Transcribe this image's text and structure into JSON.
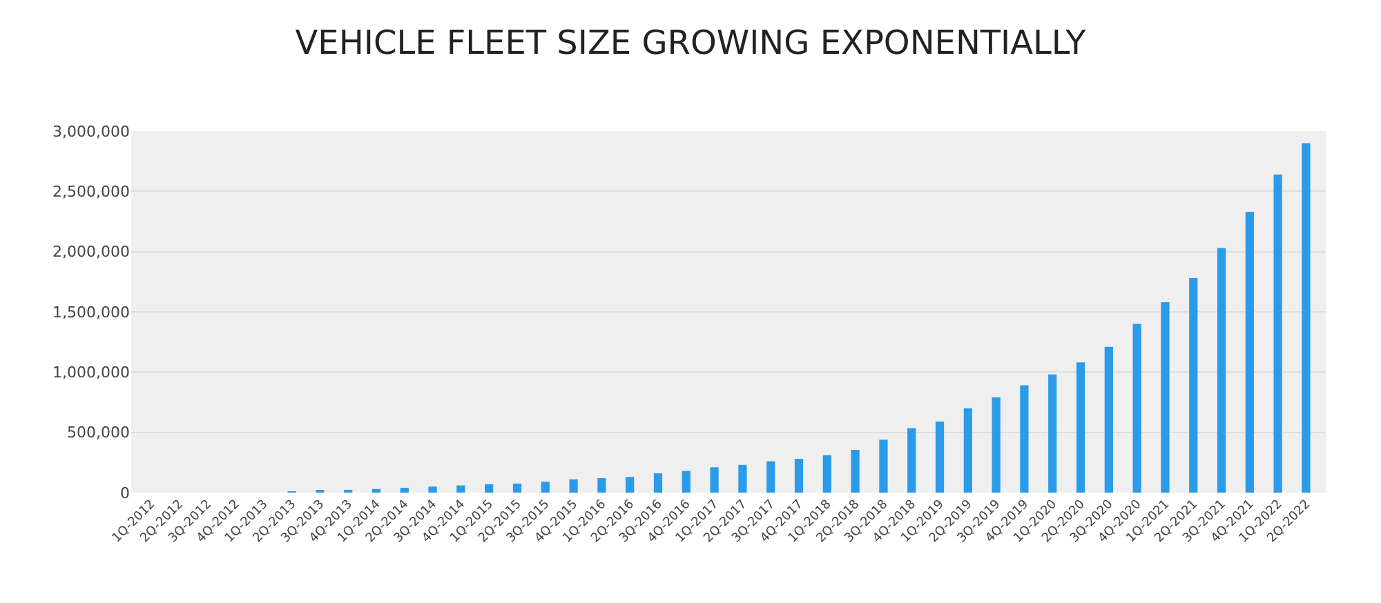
{
  "chart_data": {
    "type": "bar",
    "title": "VEHICLE FLEET SIZE GROWING EXPONENTIALLY",
    "categories": [
      "1Q-2012",
      "2Q-2012",
      "3Q-2012",
      "4Q-2012",
      "1Q-2013",
      "2Q-2013",
      "3Q-2013",
      "4Q-2013",
      "1Q-2014",
      "2Q-2014",
      "3Q-2014",
      "4Q-2014",
      "1Q-2015",
      "2Q-2015",
      "3Q-2015",
      "4Q-2015",
      "1Q-2016",
      "2Q-2016",
      "3Q-2016",
      "4Q-2016",
      "1Q-2017",
      "2Q-2017",
      "3Q-2017",
      "4Q-2017",
      "1Q-2018",
      "2Q-2018",
      "3Q-2018",
      "4Q-2018",
      "1Q-2019",
      "2Q-2019",
      "3Q-2019",
      "4Q-2019",
      "1Q-2020",
      "2Q-2020",
      "3Q-2020",
      "4Q-2020",
      "1Q-2021",
      "2Q-2021",
      "3Q-2021",
      "4Q-2021",
      "1Q-2022",
      "2Q-2022"
    ],
    "values": [
      0,
      0,
      0,
      0,
      0,
      10000,
      15000,
      22000,
      30000,
      40000,
      50000,
      60000,
      70000,
      75000,
      90000,
      110000,
      120000,
      130000,
      160000,
      180000,
      210000,
      230000,
      260000,
      280000,
      310000,
      355000,
      440000,
      535000,
      590000,
      700000,
      790000,
      890000,
      980000,
      1080000,
      1210000,
      1400000,
      1580000,
      1780000,
      2030000,
      2330000,
      2640000,
      2900000
    ],
    "color": "#2a9be8",
    "ylim": [
      0,
      3000000
    ],
    "yticks": [
      {
        "value": 0,
        "label": "0"
      },
      {
        "value": 500000,
        "label": "500,000"
      },
      {
        "value": 1000000,
        "label": "1,000,000"
      },
      {
        "value": 1500000,
        "label": "1,500,000"
      },
      {
        "value": 2000000,
        "label": "2,000,000"
      },
      {
        "value": 2500000,
        "label": "2,500,000"
      },
      {
        "value": 3000000,
        "label": "3,000,000"
      }
    ],
    "grid": "y"
  }
}
